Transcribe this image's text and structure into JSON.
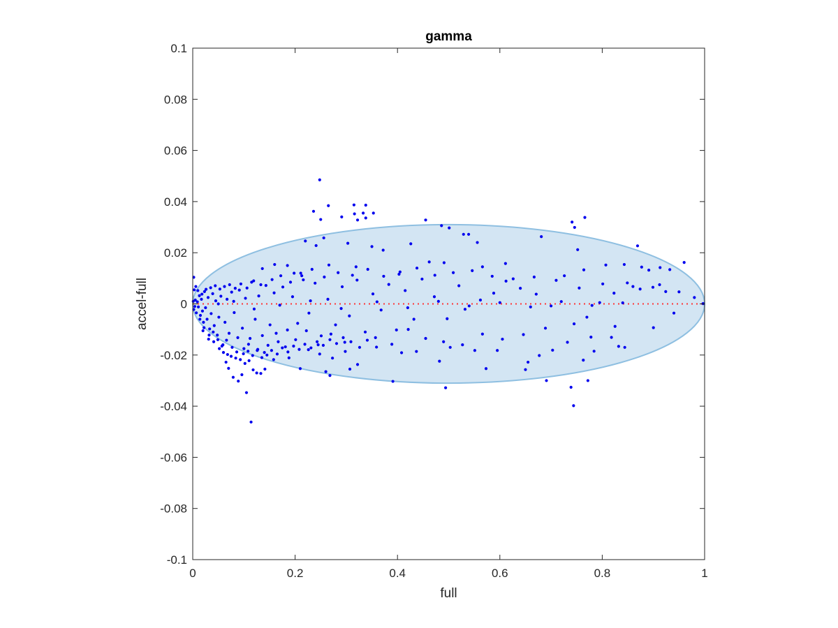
{
  "chart_data": {
    "type": "scatter",
    "title": "gamma",
    "xlabel": "full",
    "ylabel": "accel-full",
    "xlim": [
      0,
      1
    ],
    "ylim": [
      -0.1,
      0.1
    ],
    "x_ticks": [
      0,
      0.2,
      0.4,
      0.6,
      0.8,
      1
    ],
    "x_tick_labels": [
      "0",
      "0.2",
      "0.4",
      "0.6",
      "0.8",
      "1"
    ],
    "y_ticks": [
      -0.1,
      -0.08,
      -0.06,
      -0.04,
      -0.02,
      0,
      0.02,
      0.04,
      0.06,
      0.08,
      0.1
    ],
    "y_tick_labels": [
      "-0.1",
      "-0.08",
      "-0.06",
      "-0.04",
      "-0.02",
      "0",
      "0.02",
      "0.04",
      "0.06",
      "0.08",
      "0.1"
    ],
    "grid": false,
    "legend": "none",
    "marker_color": "#0000ee",
    "zero_line": {
      "y": 0,
      "color": "#ff3333",
      "style": "dotted"
    },
    "ellipse": {
      "cx": 0.5,
      "cy": 0,
      "rx": 0.5,
      "ry": 0.031,
      "fill": "#d3e5f3",
      "stroke": "#8ebfe1"
    },
    "points": [
      [
        0.248,
        0.0485
      ],
      [
        0.236,
        0.0362
      ],
      [
        0.265,
        0.0384
      ],
      [
        0.315,
        0.0387
      ],
      [
        0.338,
        0.0386
      ],
      [
        0.353,
        0.0355
      ],
      [
        0.316,
        0.0352
      ],
      [
        0.333,
        0.0355
      ],
      [
        0.322,
        0.0328
      ],
      [
        0.338,
        0.0336
      ],
      [
        0.291,
        0.034
      ],
      [
        0.25,
        0.033
      ],
      [
        0.455,
        0.0328
      ],
      [
        0.766,
        0.0338
      ],
      [
        0.741,
        0.032
      ],
      [
        0.746,
        0.0299
      ],
      [
        0.486,
        0.0306
      ],
      [
        0.501,
        0.0297
      ],
      [
        0.529,
        0.0272
      ],
      [
        0.22,
        0.0246
      ],
      [
        0.256,
        0.0258
      ],
      [
        0.241,
        0.0228
      ],
      [
        0.303,
        0.0237
      ],
      [
        0.35,
        0.0224
      ],
      [
        0.372,
        0.021
      ],
      [
        0.426,
        0.0235
      ],
      [
        0.539,
        0.0272
      ],
      [
        0.556,
        0.024
      ],
      [
        0.611,
        0.0158
      ],
      [
        0.681,
        0.0263
      ],
      [
        0.752,
        0.0212
      ],
      [
        0.869,
        0.0227
      ],
      [
        0.96,
        0.0162
      ],
      [
        0.136,
        0.0138
      ],
      [
        0.16,
        0.0154
      ],
      [
        0.185,
        0.015
      ],
      [
        0.198,
        0.012
      ],
      [
        0.213,
        0.011
      ],
      [
        0.266,
        0.0152
      ],
      [
        0.319,
        0.0145
      ],
      [
        0.403,
        0.0116
      ],
      [
        0.462,
        0.0164
      ],
      [
        0.491,
        0.0161
      ],
      [
        0.566,
        0.0145
      ],
      [
        0.726,
        0.011
      ],
      [
        0.764,
        0.0133
      ],
      [
        0.807,
        0.0152
      ],
      [
        0.843,
        0.0154
      ],
      [
        0.877,
        0.0144
      ],
      [
        0.891,
        0.0132
      ],
      [
        0.913,
        0.0142
      ],
      [
        0.932,
        0.0134
      ],
      [
        0.105,
        -0.0347
      ],
      [
        0.114,
        -0.0462
      ],
      [
        0.089,
        -0.0302
      ],
      [
        0.096,
        -0.0277
      ],
      [
        0.118,
        -0.0258
      ],
      [
        0.125,
        -0.027
      ],
      [
        0.133,
        -0.0272
      ],
      [
        0.141,
        -0.0255
      ],
      [
        0.102,
        -0.0233
      ],
      [
        0.11,
        -0.0222
      ],
      [
        0.079,
        -0.0287
      ],
      [
        0.07,
        -0.0252
      ],
      [
        0.065,
        -0.0228
      ],
      [
        0.21,
        -0.0253
      ],
      [
        0.268,
        -0.028
      ],
      [
        0.26,
        -0.0265
      ],
      [
        0.307,
        -0.0255
      ],
      [
        0.322,
        -0.0237
      ],
      [
        0.391,
        -0.0303
      ],
      [
        0.494,
        -0.0328
      ],
      [
        0.573,
        -0.0253
      ],
      [
        0.65,
        -0.0257
      ],
      [
        0.691,
        -0.03
      ],
      [
        0.744,
        -0.0398
      ],
      [
        0.739,
        -0.0326
      ],
      [
        0.772,
        -0.03
      ],
      [
        0.655,
        -0.0228
      ],
      [
        0.677,
        -0.0202
      ],
      [
        0.763,
        -0.022
      ],
      [
        0.784,
        -0.0185
      ],
      [
        0.832,
        -0.0166
      ],
      [
        0.844,
        -0.017
      ],
      [
        0.703,
        -0.0181
      ],
      [
        0.551,
        -0.0182
      ],
      [
        0.437,
        -0.0186
      ],
      [
        0.595,
        -0.0182
      ],
      [
        0.503,
        -0.017
      ],
      [
        0.482,
        -0.0224
      ],
      [
        0.408,
        -0.0191
      ],
      [
        0.359,
        -0.0169
      ],
      [
        0.341,
        -0.0142
      ],
      [
        0.298,
        -0.0186
      ],
      [
        0.273,
        -0.0212
      ],
      [
        0.248,
        -0.0196
      ],
      [
        0.226,
        -0.0179
      ],
      [
        0.188,
        -0.0211
      ],
      [
        0.158,
        -0.0218
      ],
      [
        0.14,
        -0.019
      ],
      [
        0.818,
        -0.0131
      ],
      [
        0.9,
        -0.0093
      ],
      [
        0.94,
        -0.0036
      ],
      [
        0.997,
        0.0001
      ],
      [
        0.98,
        0.0025
      ],
      [
        0.95,
        0.0047
      ],
      [
        0.912,
        0.0075
      ],
      [
        0.86,
        0.0068
      ],
      [
        0.823,
        0.0042
      ],
      [
        0.795,
        0.0005
      ],
      [
        0.77,
        -0.0052
      ],
      [
        0.745,
        -0.0078
      ],
      [
        0.7,
        -0.0008
      ],
      [
        0.671,
        0.0038
      ],
      [
        0.64,
        0.0061
      ],
      [
        0.612,
        0.0089
      ],
      [
        0.588,
        0.0042
      ],
      [
        0.562,
        0.0015
      ],
      [
        0.532,
        -0.0021
      ],
      [
        0.52,
        0.0071
      ],
      [
        0.497,
        -0.0058
      ],
      [
        0.472,
        0.0028
      ],
      [
        0.448,
        0.0097
      ],
      [
        0.432,
        -0.006
      ],
      [
        0.415,
        0.0052
      ],
      [
        0.398,
        -0.0102
      ],
      [
        0.383,
        0.0076
      ],
      [
        0.368,
        -0.0024
      ],
      [
        0.352,
        0.0039
      ],
      [
        0.337,
        -0.011
      ],
      [
        0.321,
        0.0093
      ],
      [
        0.306,
        -0.0047
      ],
      [
        0.292,
        0.0067
      ],
      [
        0.279,
        -0.0082
      ],
      [
        0.264,
        0.0018
      ],
      [
        0.251,
        -0.0125
      ],
      [
        0.239,
        0.0081
      ],
      [
        0.227,
        -0.0036
      ],
      [
        0.216,
        0.0094
      ],
      [
        0.205,
        -0.0076
      ],
      [
        0.195,
        0.0028
      ],
      [
        0.185,
        -0.0102
      ],
      [
        0.176,
        0.0066
      ],
      [
        0.167,
        -0.0148
      ],
      [
        0.159,
        0.0043
      ],
      [
        0.151,
        -0.0082
      ],
      [
        0.143,
        0.0072
      ],
      [
        0.136,
        -0.0124
      ],
      [
        0.129,
        0.0031
      ],
      [
        0.122,
        -0.006
      ],
      [
        0.115,
        0.0085
      ],
      [
        0.109,
        -0.0158
      ],
      [
        0.103,
        0.0022
      ],
      [
        0.097,
        -0.0095
      ],
      [
        0.091,
        0.0054
      ],
      [
        0.086,
        -0.0188
      ],
      [
        0.081,
        -0.0034
      ],
      [
        0.076,
        0.0046
      ],
      [
        0.071,
        -0.0115
      ],
      [
        0.067,
        0.0018
      ],
      [
        0.063,
        -0.0072
      ],
      [
        0.059,
        -0.016
      ],
      [
        0.055,
        0.003
      ],
      [
        0.051,
        -0.0052
      ],
      [
        0.048,
        -0.0122
      ],
      [
        0.045,
        0.0012
      ],
      [
        0.042,
        -0.0085
      ],
      [
        0.039,
        0.004
      ],
      [
        0.036,
        -0.0038
      ],
      [
        0.033,
        -0.0098
      ],
      [
        0.03,
        0.0025
      ],
      [
        0.028,
        -0.006
      ],
      [
        0.025,
        -0.0015
      ],
      [
        0.023,
        0.0048
      ],
      [
        0.021,
        -0.0072
      ],
      [
        0.019,
        -0.0028
      ],
      [
        0.017,
        0.0018
      ],
      [
        0.015,
        -0.0045
      ],
      [
        0.013,
        0.0032
      ],
      [
        0.011,
        -0.0012
      ],
      [
        0.009,
        0.0008
      ],
      [
        0.007,
        -0.0035
      ],
      [
        0.005,
        0.0015
      ],
      [
        0.004,
        -0.001
      ],
      [
        0.003,
        0.0055
      ],
      [
        0.002,
        -0.0022
      ],
      [
        0.001,
        0.001
      ],
      [
        0.002,
        0.0104
      ],
      [
        0.006,
        0.0068
      ],
      [
        0.01,
        0.0052
      ],
      [
        0.014,
        -0.006
      ],
      [
        0.018,
        0.0038
      ],
      [
        0.022,
        -0.0093
      ],
      [
        0.026,
        0.0057
      ],
      [
        0.031,
        -0.0138
      ],
      [
        0.035,
        0.0063
      ],
      [
        0.04,
        -0.011
      ],
      [
        0.044,
        0.0071
      ],
      [
        0.049,
        -0.014
      ],
      [
        0.053,
        0.0058
      ],
      [
        0.057,
        -0.0165
      ],
      [
        0.062,
        0.0068
      ],
      [
        0.066,
        -0.0142
      ],
      [
        0.072,
        0.0075
      ],
      [
        0.077,
        -0.017
      ],
      [
        0.083,
        0.0061
      ],
      [
        0.088,
        -0.0132
      ],
      [
        0.094,
        0.0078
      ],
      [
        0.1,
        -0.0175
      ],
      [
        0.106,
        0.0062
      ],
      [
        0.112,
        -0.0135
      ],
      [
        0.119,
        0.009
      ],
      [
        0.126,
        -0.0182
      ],
      [
        0.133,
        0.0075
      ],
      [
        0.147,
        -0.0162
      ],
      [
        0.155,
        0.0095
      ],
      [
        0.163,
        -0.0115
      ],
      [
        0.172,
        0.011
      ],
      [
        0.181,
        -0.0168
      ],
      [
        0.191,
        0.0085
      ],
      [
        0.201,
        -0.014
      ],
      [
        0.211,
        0.012
      ],
      [
        0.222,
        -0.0105
      ],
      [
        0.233,
        0.0135
      ],
      [
        0.245,
        -0.016
      ],
      [
        0.257,
        0.0105
      ],
      [
        0.27,
        -0.0118
      ],
      [
        0.284,
        0.0122
      ],
      [
        0.297,
        -0.015
      ],
      [
        0.312,
        0.0112
      ],
      [
        0.326,
        -0.017
      ],
      [
        0.342,
        0.0135
      ],
      [
        0.357,
        -0.0132
      ],
      [
        0.373,
        0.0108
      ],
      [
        0.389,
        -0.0158
      ],
      [
        0.405,
        0.0125
      ],
      [
        0.421,
        -0.01
      ],
      [
        0.438,
        0.014
      ],
      [
        0.455,
        -0.0135
      ],
      [
        0.473,
        0.0112
      ],
      [
        0.49,
        -0.0148
      ],
      [
        0.509,
        0.0122
      ],
      [
        0.527,
        -0.016
      ],
      [
        0.546,
        0.013
      ],
      [
        0.566,
        -0.0118
      ],
      [
        0.585,
        0.0108
      ],
      [
        0.605,
        -0.0138
      ],
      [
        0.626,
        0.0098
      ],
      [
        0.646,
        -0.012
      ],
      [
        0.667,
        0.0105
      ],
      [
        0.689,
        -0.0095
      ],
      [
        0.71,
        0.0092
      ],
      [
        0.732,
        -0.015
      ],
      [
        0.755,
        0.0062
      ],
      [
        0.778,
        -0.013
      ],
      [
        0.801,
        0.0078
      ],
      [
        0.825,
        -0.0088
      ],
      [
        0.849,
        0.0082
      ],
      [
        0.874,
        0.0058
      ],
      [
        0.899,
        0.0065
      ],
      [
        0.924,
        0.0048
      ],
      [
        0.05,
        0.0
      ],
      [
        0.08,
        0.001
      ],
      [
        0.12,
        -0.002
      ],
      [
        0.17,
        -0.0005
      ],
      [
        0.23,
        0.0012
      ],
      [
        0.29,
        -0.0018
      ],
      [
        0.36,
        0.0008
      ],
      [
        0.42,
        -0.0015
      ],
      [
        0.48,
        0.001
      ],
      [
        0.54,
        -0.0008
      ],
      [
        0.6,
        0.0005
      ],
      [
        0.66,
        -0.0012
      ],
      [
        0.72,
        0.0009
      ],
      [
        0.78,
        -0.0006
      ],
      [
        0.84,
        0.0004
      ],
      [
        0.02,
        -0.0105
      ],
      [
        0.032,
        -0.0122
      ],
      [
        0.041,
        -0.0148
      ],
      [
        0.052,
        -0.0175
      ],
      [
        0.06,
        -0.019
      ],
      [
        0.068,
        -0.0198
      ],
      [
        0.075,
        -0.0205
      ],
      [
        0.084,
        -0.0212
      ],
      [
        0.093,
        -0.0218
      ],
      [
        0.099,
        -0.0195
      ],
      [
        0.108,
        -0.0185
      ],
      [
        0.117,
        -0.0202
      ],
      [
        0.127,
        -0.0178
      ],
      [
        0.135,
        -0.021
      ],
      [
        0.145,
        -0.02
      ],
      [
        0.154,
        -0.0182
      ],
      [
        0.165,
        -0.0196
      ],
      [
        0.175,
        -0.0172
      ],
      [
        0.186,
        -0.0188
      ],
      [
        0.197,
        -0.0165
      ],
      [
        0.208,
        -0.0178
      ],
      [
        0.219,
        -0.0158
      ],
      [
        0.231,
        -0.0172
      ],
      [
        0.243,
        -0.0148
      ],
      [
        0.255,
        -0.0162
      ],
      [
        0.268,
        -0.014
      ],
      [
        0.281,
        -0.0155
      ],
      [
        0.294,
        -0.0132
      ],
      [
        0.309,
        -0.0148
      ]
    ]
  }
}
